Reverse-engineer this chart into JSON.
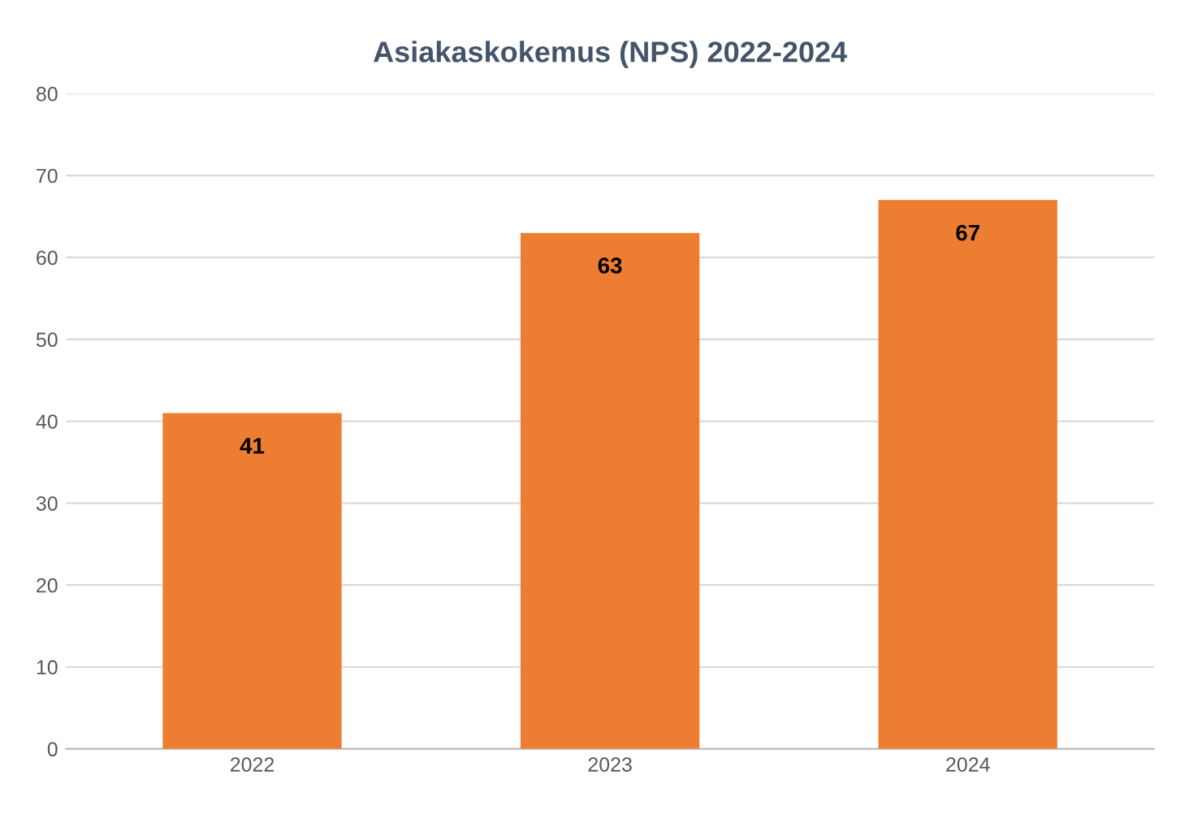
{
  "chart_data": {
    "type": "bar",
    "title": "Asiakaskokemus (NPS) 2022-2024",
    "categories": [
      "2022",
      "2023",
      "2024"
    ],
    "values": [
      41,
      63,
      67
    ],
    "color": "#ed7d31",
    "ylim": [
      0,
      80
    ],
    "yticks": [
      0,
      10,
      20,
      30,
      40,
      50,
      60,
      70,
      80
    ],
    "grid": "y",
    "data_labels": true,
    "legend": false
  }
}
